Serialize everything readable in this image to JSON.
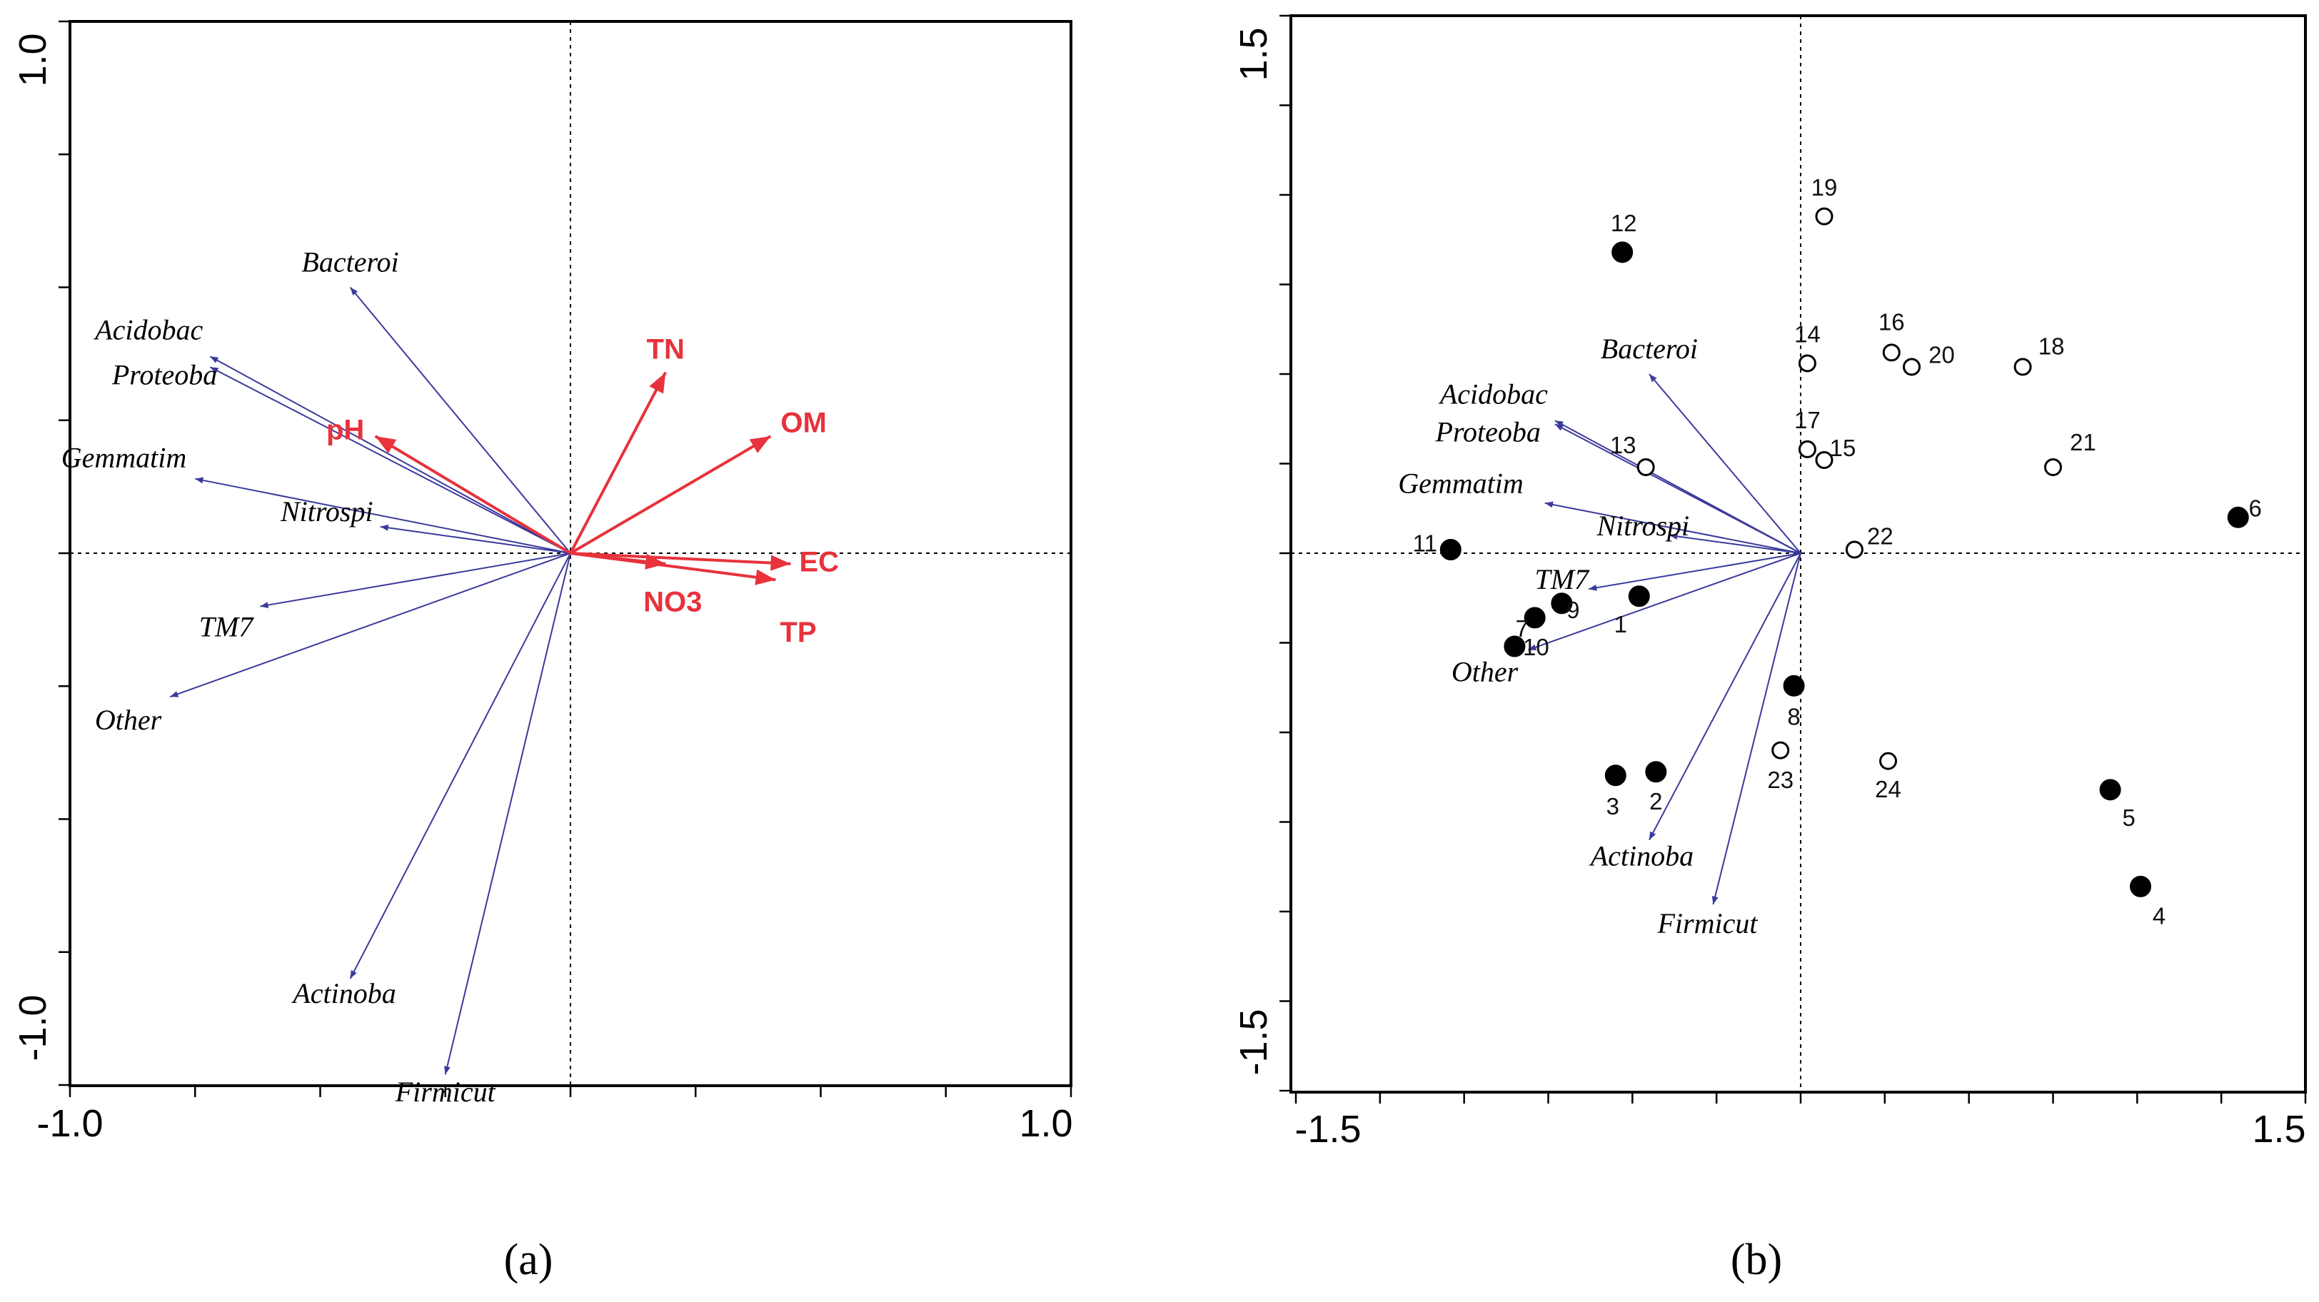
{
  "chart_data": [
    {
      "type": "biplot",
      "panel": "a",
      "panel_label": "(a)",
      "xlim": [
        -1.0,
        1.0
      ],
      "ylim": [
        -1.0,
        1.0
      ],
      "x_ticks_labeled": [
        "-1.0",
        "1.0"
      ],
      "y_ticks_labeled": [
        "-1.0",
        "1.0"
      ],
      "species_arrows": [
        {
          "name": "Bacteroi",
          "x": -0.44,
          "y": 0.5
        },
        {
          "name": "Acidobac",
          "x": -0.72,
          "y": 0.37
        },
        {
          "name": "Proteoba",
          "x": -0.72,
          "y": 0.35
        },
        {
          "name": "Gemmatim",
          "x": -0.75,
          "y": 0.14
        },
        {
          "name": "Nitrospi",
          "x": -0.38,
          "y": 0.05
        },
        {
          "name": "TM7",
          "x": -0.62,
          "y": -0.1
        },
        {
          "name": "Other",
          "x": -0.8,
          "y": -0.27
        },
        {
          "name": "Actinoba",
          "x": -0.44,
          "y": -0.8
        },
        {
          "name": "Firmicut",
          "x": -0.25,
          "y": -0.98
        }
      ],
      "env_arrows": [
        {
          "name": "TN",
          "x": 0.19,
          "y": 0.34
        },
        {
          "name": "OM",
          "x": 0.4,
          "y": 0.22
        },
        {
          "name": "pH",
          "x": -0.39,
          "y": 0.22
        },
        {
          "name": "EC",
          "x": 0.44,
          "y": -0.02
        },
        {
          "name": "NO3",
          "x": 0.19,
          "y": -0.02
        },
        {
          "name": "TP",
          "x": 0.41,
          "y": -0.05
        }
      ]
    },
    {
      "type": "biplot",
      "panel": "b",
      "panel_label": "(b)",
      "xlim": [
        -1.5,
        1.5
      ],
      "ylim": [
        -1.5,
        1.5
      ],
      "x_ticks_labeled": [
        "-1.5",
        "1.5"
      ],
      "y_ticks_labeled": [
        "-1.5",
        "1.5"
      ],
      "species_arrows": [
        {
          "name": "Bacteroi",
          "x": -0.45,
          "y": 0.5
        },
        {
          "name": "Acidobac",
          "x": -0.73,
          "y": 0.37
        },
        {
          "name": "Proteoba",
          "x": -0.73,
          "y": 0.36
        },
        {
          "name": "Gemmatim",
          "x": -0.76,
          "y": 0.14
        },
        {
          "name": "Nitrospi",
          "x": -0.39,
          "y": 0.05
        },
        {
          "name": "TM7",
          "x": -0.63,
          "y": -0.1
        },
        {
          "name": "Other",
          "x": -0.81,
          "y": -0.27
        },
        {
          "name": "Actinoba",
          "x": -0.45,
          "y": -0.8
        },
        {
          "name": "Firmicut",
          "x": -0.26,
          "y": -0.98
        }
      ],
      "sites": [
        {
          "id": "1",
          "x": -0.48,
          "y": -0.12,
          "filled": true
        },
        {
          "id": "2",
          "x": -0.43,
          "y": -0.61,
          "filled": true
        },
        {
          "id": "3",
          "x": -0.55,
          "y": -0.62,
          "filled": true
        },
        {
          "id": "4",
          "x": 1.01,
          "y": -0.93,
          "filled": true
        },
        {
          "id": "5",
          "x": 0.92,
          "y": -0.66,
          "filled": true
        },
        {
          "id": "6",
          "x": 1.3,
          "y": 0.1,
          "filled": true
        },
        {
          "id": "7",
          "x": -0.79,
          "y": -0.18,
          "filled": true
        },
        {
          "id": "8",
          "x": -0.02,
          "y": -0.37,
          "filled": true
        },
        {
          "id": "9",
          "x": -0.71,
          "y": -0.14,
          "filled": true
        },
        {
          "id": "10",
          "x": -0.85,
          "y": -0.26,
          "filled": true
        },
        {
          "id": "11",
          "x": -1.04,
          "y": 0.01,
          "filled": true
        },
        {
          "id": "12",
          "x": -0.53,
          "y": 0.84,
          "filled": true
        },
        {
          "id": "13",
          "x": -0.46,
          "y": 0.24,
          "filled": false
        },
        {
          "id": "14",
          "x": 0.02,
          "y": 0.53,
          "filled": false
        },
        {
          "id": "15",
          "x": 0.07,
          "y": 0.26,
          "filled": false
        },
        {
          "id": "16",
          "x": 0.27,
          "y": 0.56,
          "filled": false
        },
        {
          "id": "17",
          "x": 0.02,
          "y": 0.29,
          "filled": false
        },
        {
          "id": "18",
          "x": 0.66,
          "y": 0.52,
          "filled": false
        },
        {
          "id": "19",
          "x": 0.07,
          "y": 0.94,
          "filled": false
        },
        {
          "id": "20",
          "x": 0.33,
          "y": 0.52,
          "filled": false
        },
        {
          "id": "21",
          "x": 0.75,
          "y": 0.24,
          "filled": false
        },
        {
          "id": "22",
          "x": 0.16,
          "y": 0.01,
          "filled": false
        },
        {
          "id": "23",
          "x": -0.06,
          "y": -0.55,
          "filled": false
        },
        {
          "id": "24",
          "x": 0.26,
          "y": -0.58,
          "filled": false
        }
      ]
    }
  ]
}
